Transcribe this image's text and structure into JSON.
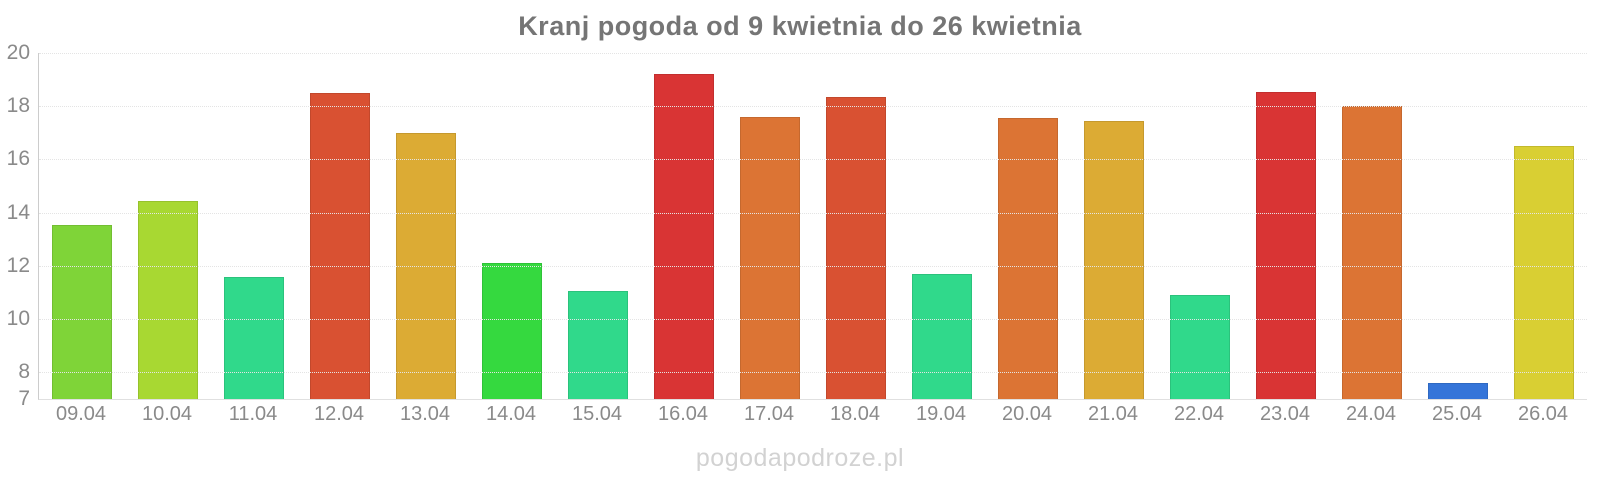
{
  "title": "Kranj pogoda od 9 kwietnia do 26 kwietnia",
  "watermark": "pogodapodroze.pl",
  "chart_data": {
    "type": "bar",
    "title": "Kranj pogoda od 9 kwietnia do 26 kwietnia",
    "xlabel": "",
    "ylabel": "",
    "ylim": [
      7,
      20
    ],
    "yticks": [
      20,
      18,
      16,
      14,
      12,
      10,
      8,
      7
    ],
    "grid": true,
    "legend": false,
    "categories": [
      "09.04",
      "10.04",
      "11.04",
      "12.04",
      "13.04",
      "14.04",
      "15.04",
      "16.04",
      "17.04",
      "18.04",
      "19.04",
      "20.04",
      "21.04",
      "22.04",
      "23.04",
      "24.04",
      "25.04",
      "26.04"
    ],
    "values": [
      13.55,
      14.45,
      11.6,
      18.5,
      17.0,
      12.1,
      11.05,
      19.2,
      17.6,
      18.35,
      11.7,
      17.55,
      17.45,
      10.9,
      18.55,
      18.0,
      7.6,
      16.5
    ],
    "bar_colors": [
      "#7fd438",
      "#a8d832",
      "#30d98b",
      "#d95132",
      "#dcab34",
      "#35d93f",
      "#30d98b",
      "#d93434",
      "#dc7434",
      "#d95132",
      "#30d98b",
      "#dc7434",
      "#dcab34",
      "#30d98b",
      "#d93434",
      "#dc7434",
      "#3575d9",
      "#d9cf33"
    ]
  },
  "colors": {
    "title_text": "#757575",
    "axis_text": "#8a8a8a",
    "gridline": "#e4e4e4",
    "axis_line": "#cccccc",
    "watermark_text": "#d2d2d2",
    "background": "#ffffff"
  }
}
